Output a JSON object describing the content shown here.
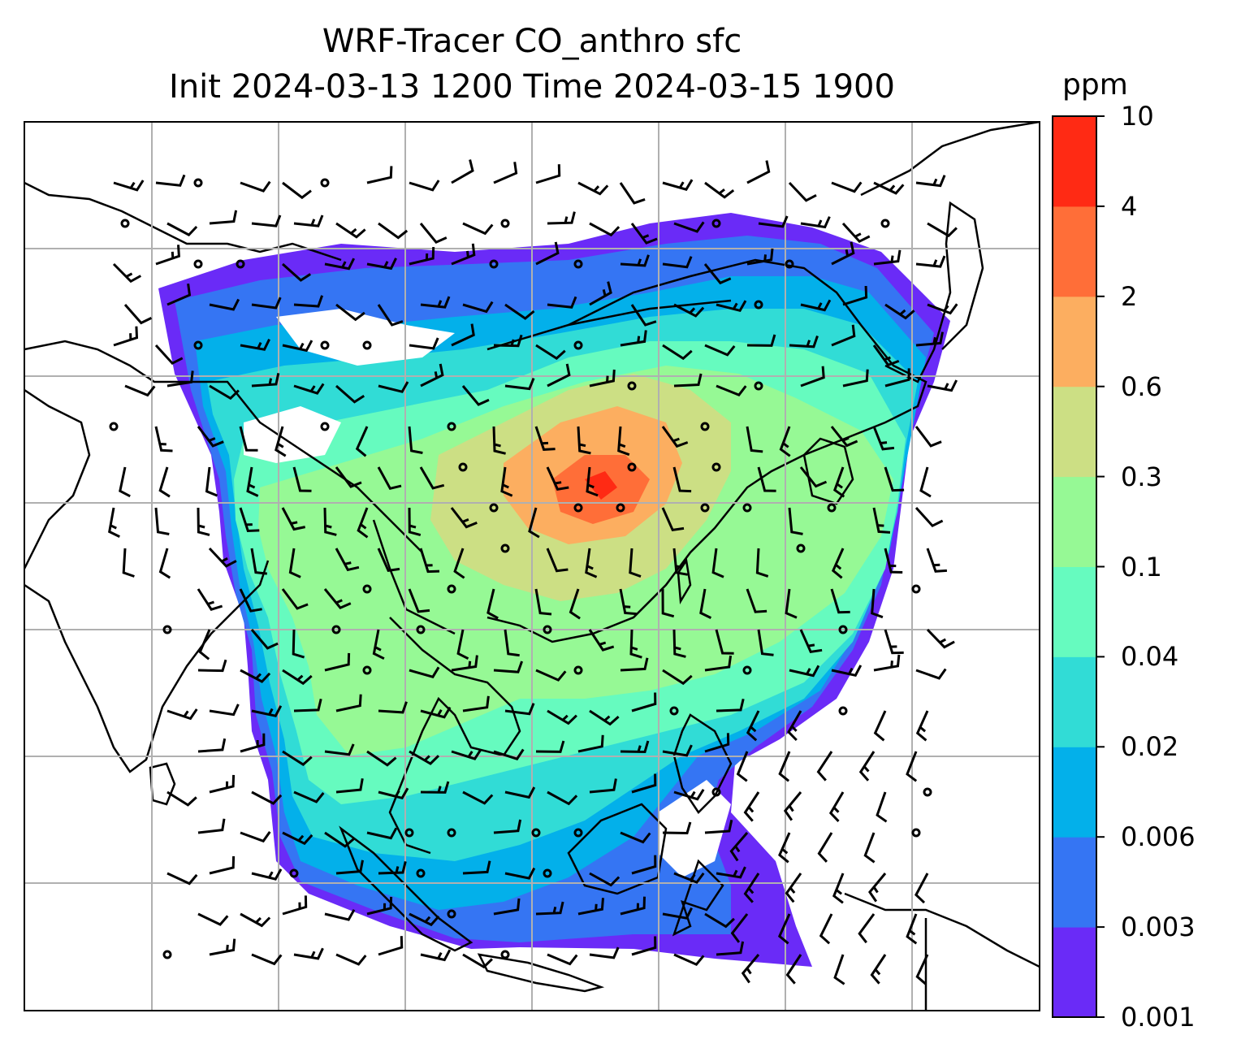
{
  "title": {
    "line1": "WRF-Tracer CO_anthro sfc",
    "line2": "Init 2024-03-13 1200 Time 2024-03-15 1900"
  },
  "colorbar": {
    "unit": "ppm",
    "ticks": [
      "0.001",
      "0.003",
      "0.006",
      "0.02",
      "0.04",
      "0.1",
      "0.3",
      "0.6",
      "2",
      "4",
      "10"
    ],
    "colors": [
      "#6a2bf7",
      "#3575f3",
      "#03b0ea",
      "#31dcd6",
      "#66fbbf",
      "#96f995",
      "#ccdf84",
      "#fcae60",
      "#ff6e38",
      "#ff2a14"
    ]
  },
  "layers": {
    "tracer_field": "CO_anthro",
    "overlays": [
      "coastlines",
      "country-borders",
      "gridlines",
      "wind-barbs"
    ]
  }
}
